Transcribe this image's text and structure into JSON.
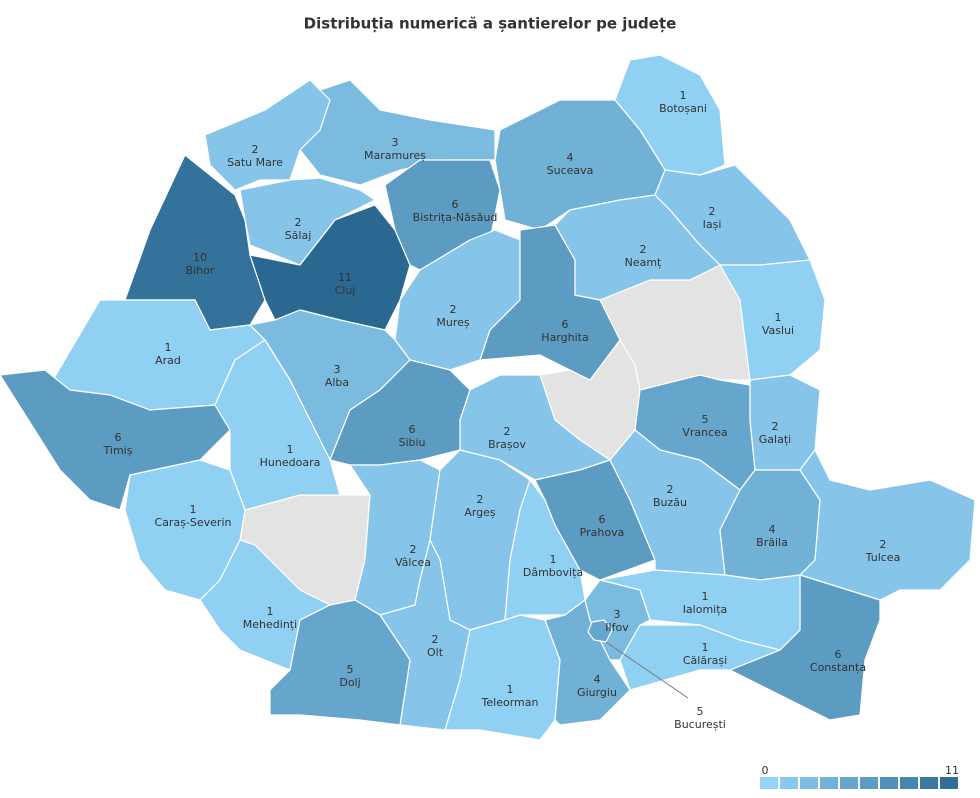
{
  "title": "Distribuția numerică a șantierelor pe județe",
  "color_scale": {
    "min": 0,
    "max": 11,
    "min_color": "#9adafd",
    "max_color": "#2a6891",
    "no_data_color": "#e3e3e3"
  },
  "counties": [
    {
      "name": "Botoșani",
      "value": 1
    },
    {
      "name": "Suceava",
      "value": 4
    },
    {
      "name": "Maramureș",
      "value": 3
    },
    {
      "name": "Satu Mare",
      "value": 2
    },
    {
      "name": "Bihor",
      "value": 10
    },
    {
      "name": "Sălaj",
      "value": 2
    },
    {
      "name": "Cluj",
      "value": 11
    },
    {
      "name": "Bistrița-Năsăud",
      "value": 6
    },
    {
      "name": "Mureș",
      "value": 2
    },
    {
      "name": "Harghita",
      "value": 6
    },
    {
      "name": "Neamț",
      "value": 2
    },
    {
      "name": "Iași",
      "value": 2
    },
    {
      "name": "Vaslui",
      "value": 1
    },
    {
      "name": "Vrancea",
      "value": 5
    },
    {
      "name": "Galați",
      "value": 2
    },
    {
      "name": "Arad",
      "value": 1
    },
    {
      "name": "Timiș",
      "value": 6
    },
    {
      "name": "Alba",
      "value": 3
    },
    {
      "name": "Hunedoara",
      "value": 1
    },
    {
      "name": "Caraș-Severin",
      "value": 1
    },
    {
      "name": "Sibiu",
      "value": 6
    },
    {
      "name": "Brașov",
      "value": 2
    },
    {
      "name": "Mehedinți",
      "value": 1
    },
    {
      "name": "Vâlcea",
      "value": 2
    },
    {
      "name": "Argeș",
      "value": 2
    },
    {
      "name": "Dâmbovița",
      "value": 1
    },
    {
      "name": "Prahova",
      "value": 6
    },
    {
      "name": "Buzău",
      "value": 2
    },
    {
      "name": "Brăila",
      "value": 4
    },
    {
      "name": "Tulcea",
      "value": 2
    },
    {
      "name": "Constanța",
      "value": 6
    },
    {
      "name": "Ialomița",
      "value": 1
    },
    {
      "name": "Călărași",
      "value": 1
    },
    {
      "name": "Olt",
      "value": 2
    },
    {
      "name": "Dolj",
      "value": 5
    },
    {
      "name": "Teleorman",
      "value": 1
    },
    {
      "name": "Giurgiu",
      "value": 4
    },
    {
      "name": "Ilfov",
      "value": 3
    },
    {
      "name": "București",
      "value": 5
    }
  ]
}
